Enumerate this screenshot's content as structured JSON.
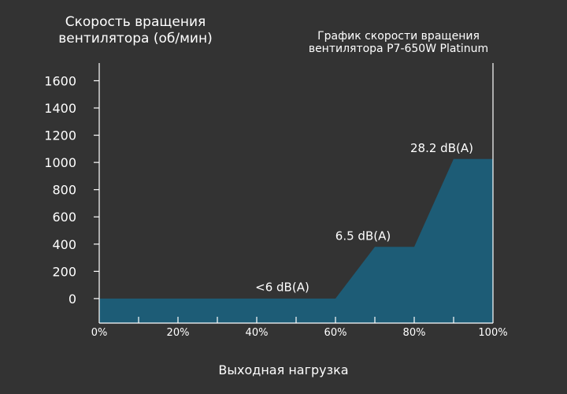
{
  "chart_data": {
    "type": "area",
    "title": "График скорости вращения\nвентилятора P7-650W Platinum",
    "ylabel": "Скорость вращения\nвентилятора (об/мин)",
    "xlabel": "Выходная нагрузка",
    "x_ticks": [
      "0%",
      "20%",
      "40%",
      "60%",
      "80%",
      "100%"
    ],
    "y_ticks": [
      0,
      200,
      400,
      600,
      800,
      1000,
      1200,
      1400,
      1600
    ],
    "xlim": [
      0,
      100
    ],
    "ylim": [
      -180,
      1730
    ],
    "x": [
      0,
      60,
      70,
      80,
      90,
      100
    ],
    "values": [
      0,
      0,
      380,
      380,
      1025,
      1025
    ],
    "annotations": [
      {
        "text": "<6 dB(A)",
        "x": 46.5,
        "y": 55
      },
      {
        "text": "6.5 dB(A)",
        "x": 67,
        "y": 430
      },
      {
        "text": "28.2 dB(A)",
        "x": 87,
        "y": 1075
      }
    ],
    "colors": {
      "background": "#333333",
      "fill": "#1d5c76",
      "axis": "#ffffff"
    },
    "grid": false
  }
}
